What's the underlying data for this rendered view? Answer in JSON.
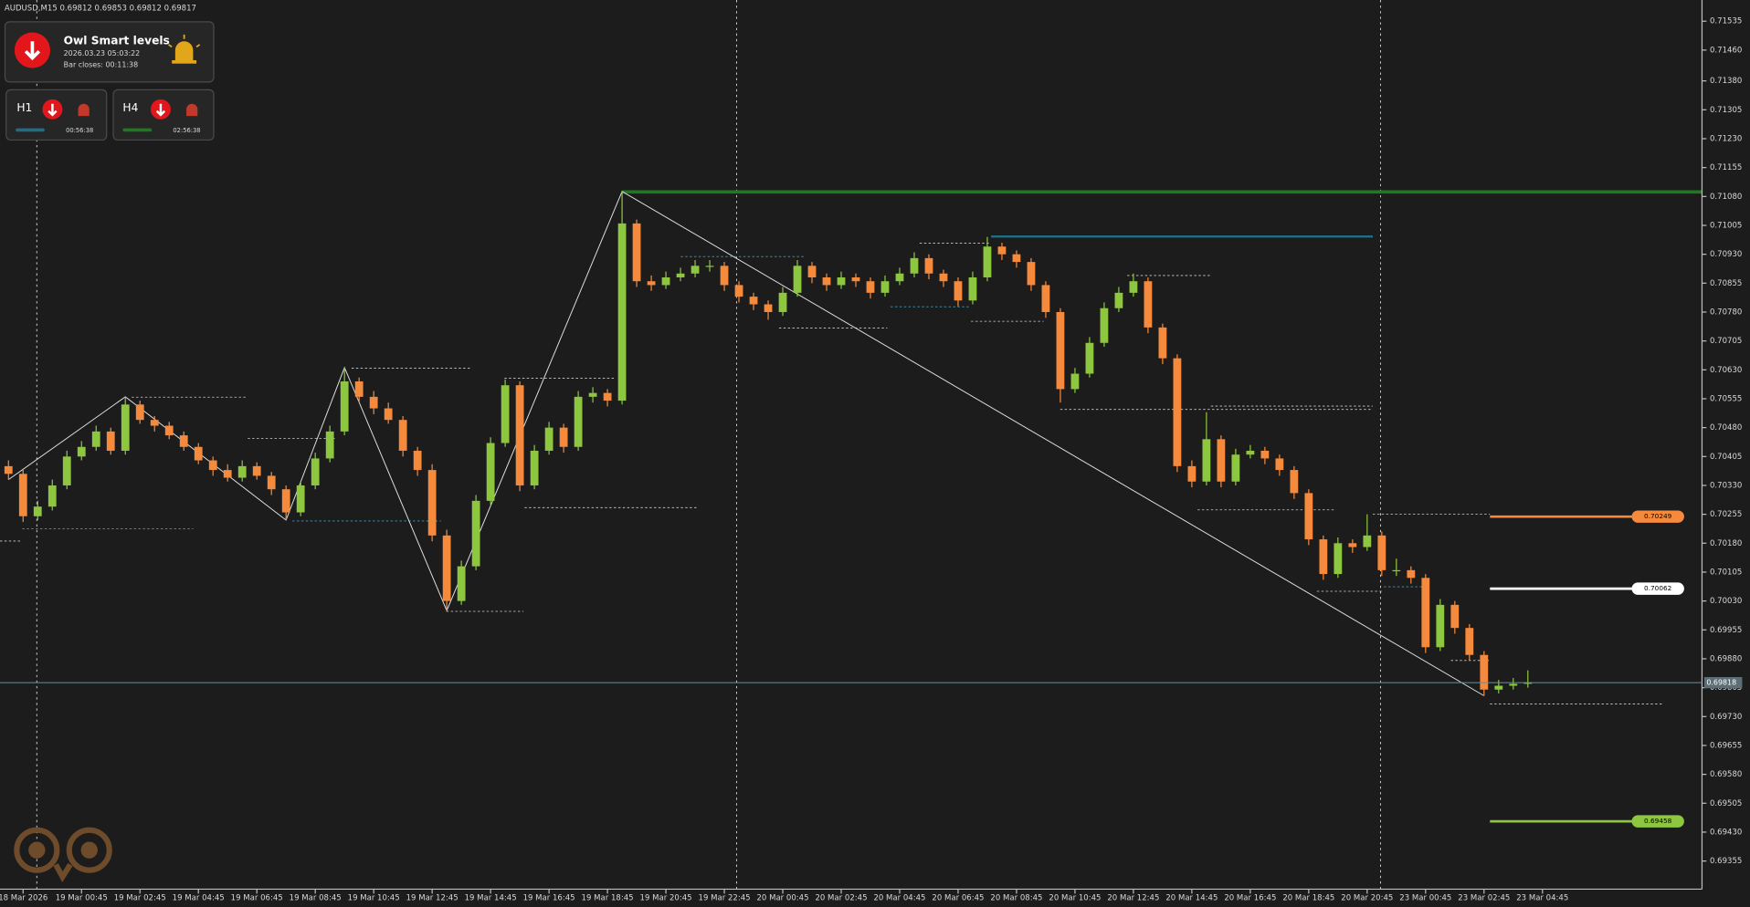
{
  "header": {
    "symbol": "AUDUSD,M15",
    "open": 0.69812,
    "high": 0.69853,
    "low": 0.69812,
    "close": 0.69817
  },
  "panel": {
    "title": "Owl Smart levels",
    "time": "2026.03.23 05:03:22",
    "bar_closes": "Bar closes: 00:11:38",
    "h1": {
      "label": "H1",
      "timer": "00:56:38"
    },
    "h4": {
      "label": "H4",
      "timer": "02:56:38"
    }
  },
  "chart_data": {
    "type": "candlestick",
    "grid": false,
    "up_color": "#8dc63f",
    "down_color": "#f58a3c",
    "open": [
      0.7038,
      0.7036,
      0.7025,
      0.70275,
      0.7033,
      0.70405,
      0.7043,
      0.7047,
      0.7042,
      0.7054,
      0.705,
      0.70485,
      0.7046,
      0.7043,
      0.70395,
      0.7037,
      0.7035,
      0.7038,
      0.70355,
      0.7032,
      0.7026,
      0.7033,
      0.704,
      0.7047,
      0.706,
      0.7056,
      0.7053,
      0.705,
      0.7042,
      0.7037,
      0.702,
      0.7003,
      0.7012,
      0.7029,
      0.7044,
      0.7059,
      0.7033,
      0.7042,
      0.7048,
      0.7043,
      0.7056,
      0.7057,
      0.7055,
      0.7101,
      0.7086,
      0.7085,
      0.7087,
      0.7088,
      0.709,
      0.709,
      0.7085,
      0.7082,
      0.708,
      0.7078,
      0.7083,
      0.709,
      0.7087,
      0.7085,
      0.7087,
      0.7086,
      0.7083,
      0.7086,
      0.7088,
      0.7092,
      0.7088,
      0.7086,
      0.7081,
      0.7087,
      0.7095,
      0.7093,
      0.7091,
      0.7085,
      0.7078,
      0.7058,
      0.7062,
      0.707,
      0.7079,
      0.7083,
      0.7086,
      0.7074,
      0.7066,
      0.7038,
      0.7034,
      0.7045,
      0.7034,
      0.7041,
      0.7042,
      0.704,
      0.7037,
      0.7031,
      0.7019,
      0.701,
      0.7018,
      0.7017,
      0.702,
      0.7011,
      0.7011,
      0.7009,
      0.6991,
      0.7002,
      0.6996,
      0.6989,
      0.698,
      0.6981,
      0.69815
    ],
    "high": [
      0.70395,
      0.7037,
      0.7029,
      0.70345,
      0.7042,
      0.70445,
      0.70485,
      0.7048,
      0.7056,
      0.7055,
      0.7051,
      0.70495,
      0.7047,
      0.7044,
      0.70405,
      0.70385,
      0.70395,
      0.7039,
      0.70365,
      0.7033,
      0.7034,
      0.70415,
      0.70485,
      0.70636,
      0.7061,
      0.70575,
      0.70545,
      0.7051,
      0.7043,
      0.70385,
      0.70215,
      0.70135,
      0.70305,
      0.70455,
      0.70605,
      0.706,
      0.70435,
      0.70495,
      0.7049,
      0.70575,
      0.70585,
      0.7058,
      0.71093,
      0.7102,
      0.70875,
      0.70885,
      0.70895,
      0.70915,
      0.70915,
      0.7091,
      0.7086,
      0.7083,
      0.7081,
      0.70845,
      0.70915,
      0.7091,
      0.7088,
      0.70885,
      0.7088,
      0.7087,
      0.70875,
      0.70895,
      0.70935,
      0.7093,
      0.7089,
      0.7087,
      0.70885,
      0.70975,
      0.7096,
      0.7094,
      0.7092,
      0.7086,
      0.7079,
      0.70635,
      0.70715,
      0.70805,
      0.70845,
      0.7088,
      0.7087,
      0.7075,
      0.7067,
      0.70395,
      0.7052,
      0.7046,
      0.70425,
      0.70435,
      0.7043,
      0.7041,
      0.7038,
      0.7032,
      0.702,
      0.70195,
      0.7019,
      0.70255,
      0.7021,
      0.7014,
      0.7012,
      0.701,
      0.70035,
      0.7003,
      0.6997,
      0.699,
      0.69825,
      0.6983,
      0.6985
    ],
    "low": [
      0.70345,
      0.70235,
      0.7024,
      0.70265,
      0.7032,
      0.70395,
      0.7042,
      0.7041,
      0.7041,
      0.7049,
      0.7047,
      0.7045,
      0.7042,
      0.70385,
      0.70355,
      0.7034,
      0.7034,
      0.70345,
      0.70305,
      0.7024,
      0.7025,
      0.7032,
      0.7039,
      0.7046,
      0.70545,
      0.70515,
      0.7049,
      0.70405,
      0.70355,
      0.70185,
      0.70005,
      0.7002,
      0.7011,
      0.7028,
      0.7043,
      0.70315,
      0.7032,
      0.7041,
      0.70415,
      0.7042,
      0.70545,
      0.70535,
      0.7054,
      0.70845,
      0.70835,
      0.7084,
      0.7086,
      0.7087,
      0.70885,
      0.70835,
      0.70805,
      0.70785,
      0.7076,
      0.7077,
      0.7082,
      0.70855,
      0.70835,
      0.7084,
      0.70845,
      0.70815,
      0.7082,
      0.7085,
      0.7087,
      0.70865,
      0.70845,
      0.70795,
      0.708,
      0.7086,
      0.70915,
      0.70895,
      0.70835,
      0.70765,
      0.70545,
      0.7057,
      0.7061,
      0.7069,
      0.7078,
      0.7082,
      0.70725,
      0.70645,
      0.70365,
      0.70325,
      0.7033,
      0.70325,
      0.7033,
      0.704,
      0.70385,
      0.70355,
      0.70295,
      0.70175,
      0.70085,
      0.7009,
      0.70155,
      0.7016,
      0.70095,
      0.70095,
      0.70075,
      0.69895,
      0.699,
      0.69945,
      0.69875,
      0.69784,
      0.6979,
      0.698,
      0.69805
    ],
    "close": [
      0.7036,
      0.7025,
      0.70275,
      0.7033,
      0.70405,
      0.7043,
      0.7047,
      0.7042,
      0.7054,
      0.705,
      0.70485,
      0.7046,
      0.7043,
      0.70395,
      0.7037,
      0.7035,
      0.7038,
      0.70355,
      0.7032,
      0.7026,
      0.7033,
      0.704,
      0.7047,
      0.706,
      0.7056,
      0.7053,
      0.705,
      0.7042,
      0.7037,
      0.702,
      0.7003,
      0.7012,
      0.7029,
      0.7044,
      0.7059,
      0.7033,
      0.7042,
      0.7048,
      0.7043,
      0.7056,
      0.7057,
      0.7055,
      0.7101,
      0.7086,
      0.7085,
      0.7087,
      0.7088,
      0.709,
      0.709,
      0.7085,
      0.7082,
      0.708,
      0.7078,
      0.7083,
      0.709,
      0.7087,
      0.7085,
      0.7087,
      0.7086,
      0.7083,
      0.7086,
      0.7088,
      0.7092,
      0.7088,
      0.7086,
      0.7081,
      0.7087,
      0.7095,
      0.7093,
      0.7091,
      0.7085,
      0.7078,
      0.7058,
      0.7062,
      0.707,
      0.7079,
      0.7083,
      0.7086,
      0.7074,
      0.7066,
      0.7038,
      0.7034,
      0.7045,
      0.7034,
      0.7041,
      0.7042,
      0.704,
      0.7037,
      0.7031,
      0.7019,
      0.701,
      0.7018,
      0.7017,
      0.702,
      0.7011,
      0.7011,
      0.7009,
      0.6991,
      0.7002,
      0.6996,
      0.6989,
      0.698,
      0.6981,
      0.69815,
      0.69818
    ],
    "xlim": [
      -0.58,
      115.92
    ],
    "xticks": [
      {
        "value": 1,
        "label": "18 Mar 2026"
      },
      {
        "value": 5,
        "label": "19 Mar 00:45"
      },
      {
        "value": 9,
        "label": "19 Mar 02:45"
      },
      {
        "value": 13,
        "label": "19 Mar 04:45"
      },
      {
        "value": 17,
        "label": "19 Mar 06:45"
      },
      {
        "value": 21,
        "label": "19 Mar 08:45"
      },
      {
        "value": 25,
        "label": "19 Mar 10:45"
      },
      {
        "value": 29,
        "label": "19 Mar 12:45"
      },
      {
        "value": 33,
        "label": "19 Mar 14:45"
      },
      {
        "value": 37,
        "label": "19 Mar 16:45"
      },
      {
        "value": 41,
        "label": "19 Mar 18:45"
      },
      {
        "value": 45,
        "label": "19 Mar 20:45"
      },
      {
        "value": 49,
        "label": "19 Mar 22:45"
      },
      {
        "value": 53,
        "label": "20 Mar 00:45"
      },
      {
        "value": 57,
        "label": "20 Mar 02:45"
      },
      {
        "value": 61,
        "label": "20 Mar 04:45"
      },
      {
        "value": 65,
        "label": "20 Mar 06:45"
      },
      {
        "value": 69,
        "label": "20 Mar 08:45"
      },
      {
        "value": 73,
        "label": "20 Mar 10:45"
      },
      {
        "value": 77,
        "label": "20 Mar 12:45"
      },
      {
        "value": 81,
        "label": "20 Mar 14:45"
      },
      {
        "value": 85,
        "label": "20 Mar 16:45"
      },
      {
        "value": 89,
        "label": "20 Mar 18:45"
      },
      {
        "value": 93,
        "label": "20 Mar 20:45"
      },
      {
        "value": 97,
        "label": "23 Mar 00:45"
      },
      {
        "value": 101,
        "label": "23 Mar 02:45"
      },
      {
        "value": 105,
        "label": "23 Mar 04:45"
      }
    ],
    "ylim": [
      0.69282,
      0.7159
    ],
    "yticks": [
      0.71535,
      {
        "value": 0.7146,
        "label": "0.71460"
      },
      {
        "value": 0.7138,
        "label": "0.71380"
      },
      0.71305,
      {
        "value": 0.7123,
        "label": "0.71230"
      },
      0.71155,
      {
        "value": 0.7108,
        "label": "0.71080"
      },
      0.71005,
      {
        "value": 0.7093,
        "label": "0.70930"
      },
      0.70855,
      {
        "value": 0.7078,
        "label": "0.70780"
      },
      0.70705,
      {
        "value": 0.7063,
        "label": "0.70630"
      },
      0.70555,
      {
        "value": 0.7048,
        "label": "0.70480"
      },
      0.70405,
      {
        "value": 0.7033,
        "label": "0.70330"
      },
      0.70255,
      {
        "value": 0.7018,
        "label": "0.70180"
      },
      0.70105,
      {
        "value": 0.7003,
        "label": "0.70030"
      },
      0.69955,
      {
        "value": 0.6988,
        "label": "0.69880"
      },
      0.69805,
      {
        "value": 0.6973,
        "label": "0.69730"
      },
      0.69655,
      {
        "value": 0.6958,
        "label": "0.69580"
      },
      0.69505,
      {
        "value": 0.6943,
        "label": "0.69430"
      },
      0.69355
    ],
    "last_price": 0.69818,
    "levels": [
      {
        "value": 0.70249,
        "color": "#f58a3c"
      },
      {
        "value": 0.70062,
        "color": "#ffffff"
      },
      {
        "value": 0.69458,
        "color": "#8dc63f"
      }
    ]
  }
}
